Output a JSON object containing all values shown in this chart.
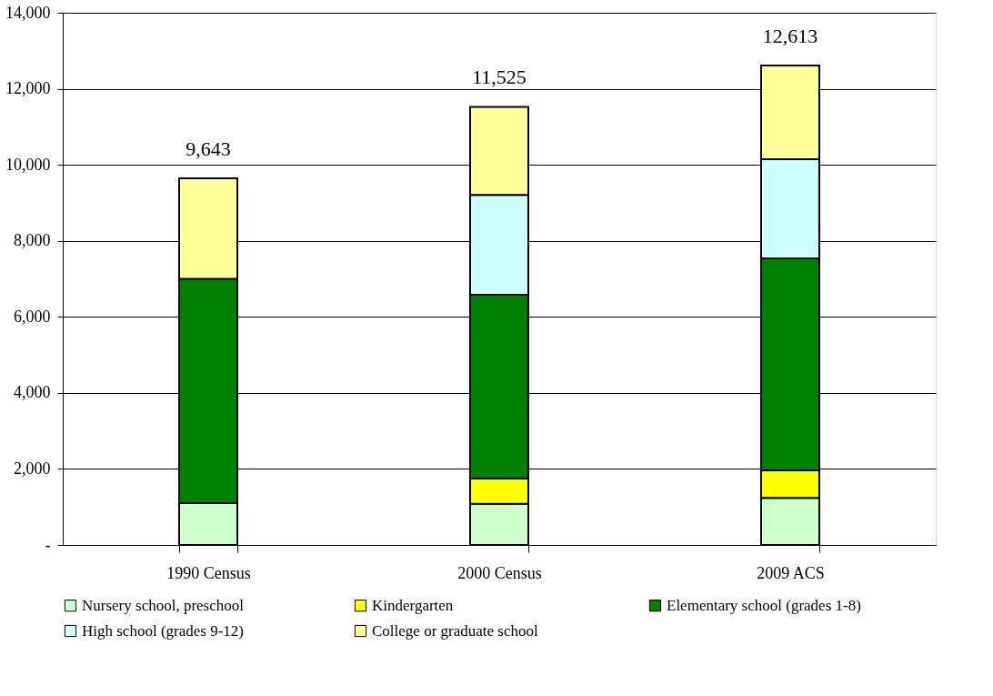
{
  "chart_data": {
    "type": "bar",
    "stacked": true,
    "categories": [
      "1990 Census",
      "2000 Census",
      "2009 ACS"
    ],
    "series": [
      {
        "name": "Nursery school, preschool",
        "color": "#ccffcc",
        "values": [
          1100,
          1080,
          1240
        ]
      },
      {
        "name": "Kindergarten",
        "color": "#ffff00",
        "values": [
          null,
          670,
          720
        ]
      },
      {
        "name": "Elementary school (grades 1-8)",
        "color": "#008000",
        "values": [
          5900,
          4830,
          5580
        ]
      },
      {
        "name": "High school (grades 9-12)",
        "color": "#ccffff",
        "values": [
          null,
          2630,
          2610
        ]
      },
      {
        "name": "College or graduate school",
        "color": "#ffff99",
        "values": [
          2643,
          2315,
          2463
        ]
      }
    ],
    "totals": [
      "9,643",
      "11,525",
      "12,613"
    ],
    "ylim": [
      0,
      14000
    ],
    "yticks": [
      {
        "value": 0,
        "label": "-"
      },
      {
        "value": 2000,
        "label": "2,000"
      },
      {
        "value": 4000,
        "label": "4,000"
      },
      {
        "value": 6000,
        "label": "6,000"
      },
      {
        "value": 8000,
        "label": "8,000"
      },
      {
        "value": 10000,
        "label": "10,000"
      },
      {
        "value": 12000,
        "label": "12,000"
      },
      {
        "value": 14000,
        "label": "14,000"
      }
    ],
    "grid": "y",
    "legend": "bottom"
  }
}
